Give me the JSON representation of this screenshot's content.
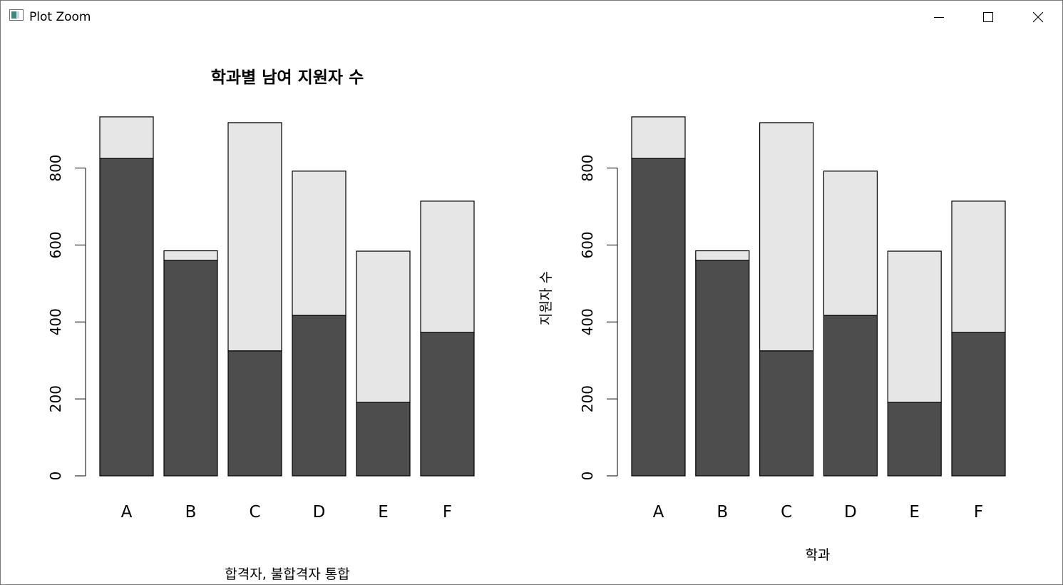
{
  "window": {
    "title": "Plot Zoom",
    "icon": "r-plot-window-icon",
    "buttons": [
      "minimize-icon",
      "maximize-icon",
      "close-icon"
    ]
  },
  "colors": {
    "bar_bottom": "#4d4d4d",
    "bar_top": "#e6e6e6",
    "axis": "#000000"
  },
  "chart_data": [
    {
      "type": "bar",
      "stacked": true,
      "title": "학과별 남여 지원자 수",
      "xlabel": "합격자, 불합격자 통합",
      "ylabel": "",
      "categories": [
        "A",
        "B",
        "C",
        "D",
        "E",
        "F"
      ],
      "series": [
        {
          "values": [
            825,
            560,
            325,
            417,
            191,
            373
          ]
        },
        {
          "values": [
            108,
            25,
            593,
            375,
            393,
            341
          ]
        }
      ],
      "ylim": [
        0,
        933
      ],
      "yticks": [
        "0",
        "200",
        "400",
        "600",
        "800"
      ],
      "grid": false
    },
    {
      "type": "bar",
      "stacked": true,
      "title": "",
      "xlabel": "학과",
      "ylabel": "지원자 수",
      "categories": [
        "A",
        "B",
        "C",
        "D",
        "E",
        "F"
      ],
      "series": [
        {
          "values": [
            825,
            560,
            325,
            417,
            191,
            373
          ]
        },
        {
          "values": [
            108,
            25,
            593,
            375,
            393,
            341
          ]
        }
      ],
      "ylim": [
        0,
        933
      ],
      "yticks": [
        "0",
        "200",
        "400",
        "600",
        "800"
      ],
      "grid": false
    }
  ]
}
